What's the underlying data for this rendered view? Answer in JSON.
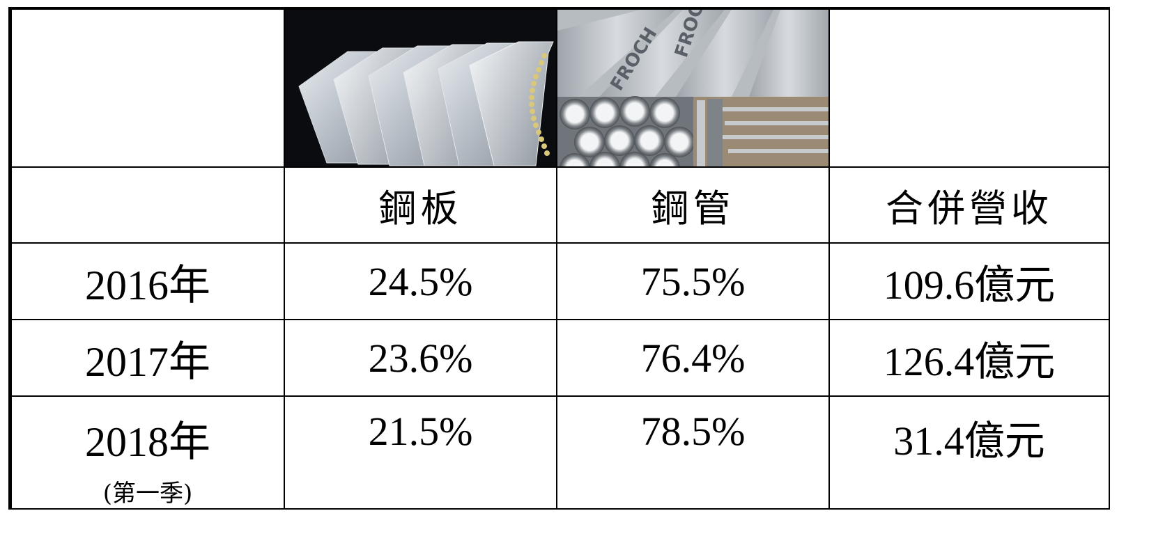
{
  "table": {
    "images": {
      "plate": "steel-plate-photo",
      "pipe": "steel-pipe-photo",
      "pipe_print": "FROCH"
    },
    "headers": [
      "",
      "鋼板",
      "鋼管",
      "合併營收"
    ],
    "rows": [
      {
        "year": "2016年",
        "note": "",
        "plate": "24.5%",
        "pipe": "75.5%",
        "revenue": "109.6億元"
      },
      {
        "year": "2017年",
        "note": "",
        "plate": "23.6%",
        "pipe": "76.4%",
        "revenue": "126.4億元"
      },
      {
        "year": "2018年",
        "note": "(第一季)",
        "plate": "21.5%",
        "pipe": "78.5%",
        "revenue": "31.4億元"
      }
    ]
  }
}
